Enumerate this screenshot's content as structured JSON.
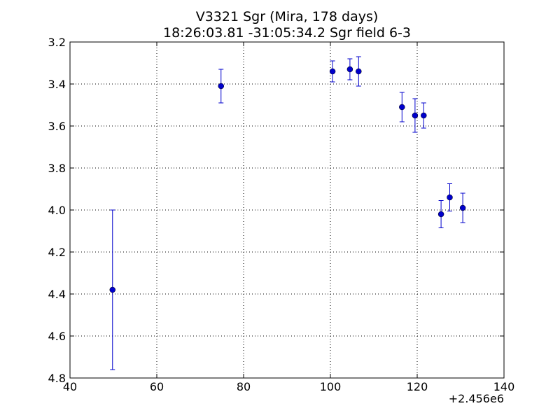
{
  "chart_data": {
    "type": "scatter",
    "title_line1": "V3321 Sgr (Mira, 178 days)",
    "title_line2": "18:26:03.81 -31:05:34.2 Sgr field 6-3",
    "xlabel": "",
    "ylabel": "",
    "x_offset_label": "+2.456e6",
    "xlim": [
      40,
      140
    ],
    "ylim": [
      3.2,
      4.8
    ],
    "y_inverted": true,
    "grid": true,
    "x_ticks": [
      40,
      60,
      80,
      100,
      120,
      140
    ],
    "y_ticks": [
      3.2,
      3.4,
      3.6,
      3.8,
      4.0,
      4.2,
      4.4,
      4.6,
      4.8
    ],
    "x_tick_labels": [
      "40",
      "60",
      "80",
      "100",
      "120",
      "140"
    ],
    "y_tick_labels": [
      "3.2",
      "3.4",
      "3.6",
      "3.8",
      "4.0",
      "4.2",
      "4.4",
      "4.6",
      "4.8"
    ],
    "color": "#0000cc",
    "points": [
      {
        "x": 49.8,
        "y": 4.38,
        "err": 0.38
      },
      {
        "x": 74.8,
        "y": 3.41,
        "err": 0.08
      },
      {
        "x": 100.5,
        "y": 3.34,
        "err": 0.05
      },
      {
        "x": 104.5,
        "y": 3.33,
        "err": 0.05
      },
      {
        "x": 106.5,
        "y": 3.34,
        "err": 0.07
      },
      {
        "x": 116.5,
        "y": 3.51,
        "err": 0.07
      },
      {
        "x": 119.5,
        "y": 3.55,
        "err": 0.08
      },
      {
        "x": 121.5,
        "y": 3.55,
        "err": 0.06
      },
      {
        "x": 125.5,
        "y": 4.02,
        "err": 0.065
      },
      {
        "x": 127.5,
        "y": 3.94,
        "err": 0.065
      },
      {
        "x": 130.5,
        "y": 3.99,
        "err": 0.07
      }
    ]
  }
}
